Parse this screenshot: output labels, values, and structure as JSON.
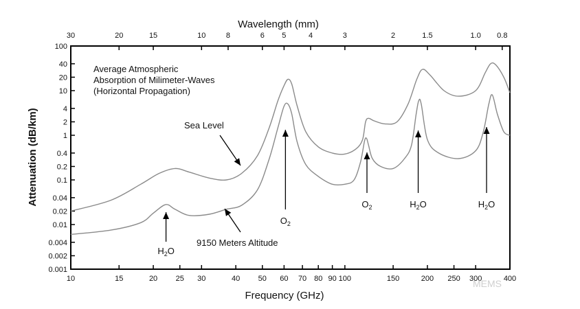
{
  "chart_data": {
    "type": "line",
    "title": "Average Atmospheric Absorption of Milimeter-Waves (Horizontal Propagation)",
    "title_lines": [
      "Average Atmospheric",
      "Absorption of Milimeter-Waves",
      "(Horizontal Propagation)"
    ],
    "xlabel": "Frequency (GHz)",
    "ylabel": "Attenuation (dB/km)",
    "x2label": "Wavelength (mm)",
    "x_scale": "log",
    "y_scale": "log",
    "xlim": [
      10,
      400
    ],
    "ylim": [
      0.001,
      100
    ],
    "x_ticks": [
      10,
      15,
      20,
      25,
      30,
      40,
      50,
      60,
      70,
      80,
      90,
      100,
      150,
      200,
      250,
      300,
      400
    ],
    "x_tick_labels": [
      "10",
      "15",
      "20",
      "25",
      "30",
      "40",
      "50",
      "60",
      "70",
      "80",
      "90",
      "100",
      "150",
      "200",
      "250",
      "300",
      "400"
    ],
    "y_ticks": [
      0.001,
      0.002,
      0.004,
      0.01,
      0.02,
      0.04,
      0.1,
      0.2,
      0.4,
      1,
      2,
      4,
      10,
      20,
      40,
      100
    ],
    "y_tick_labels": [
      "0.001",
      "0.002",
      "0.004",
      "0.01",
      "0.02",
      "0.04",
      "0.1",
      "0.2",
      "0.4",
      "1",
      "2",
      "4",
      "10",
      "20",
      "40",
      "100"
    ],
    "wavelength_ticks_mm": [
      30,
      20,
      15,
      10,
      8,
      6,
      5,
      4,
      3,
      2,
      1.5,
      1.0,
      0.8
    ],
    "wavelength_tick_labels": [
      "30",
      "20",
      "15",
      "10",
      "8",
      "6",
      "5",
      "4",
      "3",
      "2",
      "1.5",
      "1.0",
      "0.8"
    ],
    "series": [
      {
        "name": "Sea Level",
        "x": [
          10,
          14,
          18,
          21,
          24,
          27,
          32,
          37,
          42,
          48,
          53,
          57,
          60,
          62,
          64,
          67,
          72,
          80,
          90,
          100,
          110,
          116,
          119,
          122,
          128,
          140,
          155,
          170,
          183,
          192,
          205,
          230,
          260,
          300,
          325,
          340,
          355,
          380,
          400
        ],
        "y": [
          0.02,
          0.035,
          0.08,
          0.14,
          0.18,
          0.15,
          0.11,
          0.1,
          0.14,
          0.35,
          1.5,
          6,
          13,
          18,
          14,
          4.5,
          1.2,
          0.55,
          0.4,
          0.38,
          0.5,
          0.8,
          2,
          2.4,
          2.1,
          1.8,
          2,
          5,
          18,
          30,
          22,
          10,
          7.5,
          10,
          25,
          40,
          38,
          20,
          9
        ]
      },
      {
        "name": "9150 Meters Altitude",
        "x": [
          10,
          14,
          18,
          20,
          22.2,
          24,
          27,
          32,
          37,
          42,
          48,
          53,
          57,
          60,
          62,
          64,
          67,
          72,
          80,
          90,
          100,
          108,
          114,
          118,
          120,
          122,
          126,
          135,
          150,
          165,
          175,
          182,
          186,
          190,
          200,
          220,
          260,
          300,
          320,
          335,
          345,
          360,
          380,
          400
        ],
        "y": [
          0.006,
          0.0075,
          0.011,
          0.018,
          0.028,
          0.022,
          0.016,
          0.017,
          0.022,
          0.027,
          0.06,
          0.3,
          1.5,
          4.5,
          5,
          3,
          0.7,
          0.22,
          0.12,
          0.08,
          0.08,
          0.1,
          0.25,
          0.75,
          0.85,
          0.6,
          0.3,
          0.2,
          0.18,
          0.3,
          0.6,
          3,
          6,
          5,
          0.8,
          0.4,
          0.3,
          0.45,
          1.2,
          5,
          8,
          3,
          1.2,
          1
        ]
      }
    ],
    "annotations": [
      {
        "text": "Sea Level",
        "target": "Sea Level curve"
      },
      {
        "text": "9150 Meters Altitude",
        "target": "9150 Meters Altitude curve"
      },
      {
        "text": "H",
        "sub": "2",
        "text2": "O",
        "freq_ghz": 22,
        "note": "water vapor line"
      },
      {
        "text": "O",
        "sub": "2",
        "text2": "",
        "freq_ghz": 60,
        "note": "oxygen line"
      },
      {
        "text": "O",
        "sub": "2",
        "text2": "",
        "freq_ghz": 119,
        "note": "oxygen line"
      },
      {
        "text": "H",
        "sub": "2",
        "text2": "O",
        "freq_ghz": 183,
        "note": "water vapor line"
      },
      {
        "text": "H",
        "sub": "2",
        "text2": "O",
        "freq_ghz": 325,
        "note": "water vapor line"
      }
    ],
    "grid": false,
    "legend": "none"
  },
  "watermark": "MEMS",
  "colors": {
    "curve": "#8a8a8a",
    "frame": "#000000",
    "text": "#111111",
    "watermark": "#cfcfcf"
  }
}
